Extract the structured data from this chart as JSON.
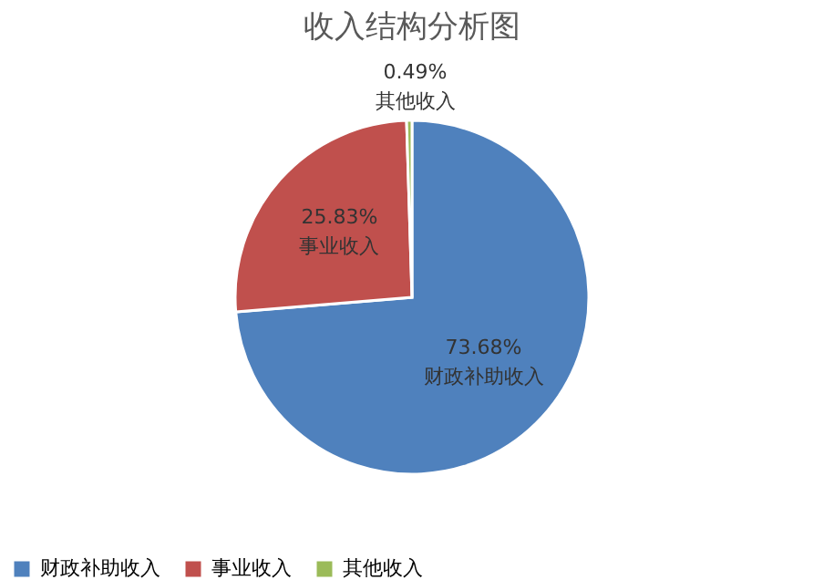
{
  "chart_data": {
    "type": "pie",
    "title": "收入结构分析图",
    "categories": [
      "财政补助收入",
      "事业收入",
      "其他收入"
    ],
    "values": [
      73.68,
      25.83,
      0.49
    ],
    "value_labels": [
      "73.68%",
      "25.83%",
      "0.49%"
    ],
    "colors": [
      "#4f81bd",
      "#c0504d",
      "#9bbb59"
    ],
    "legend": "bottom"
  }
}
